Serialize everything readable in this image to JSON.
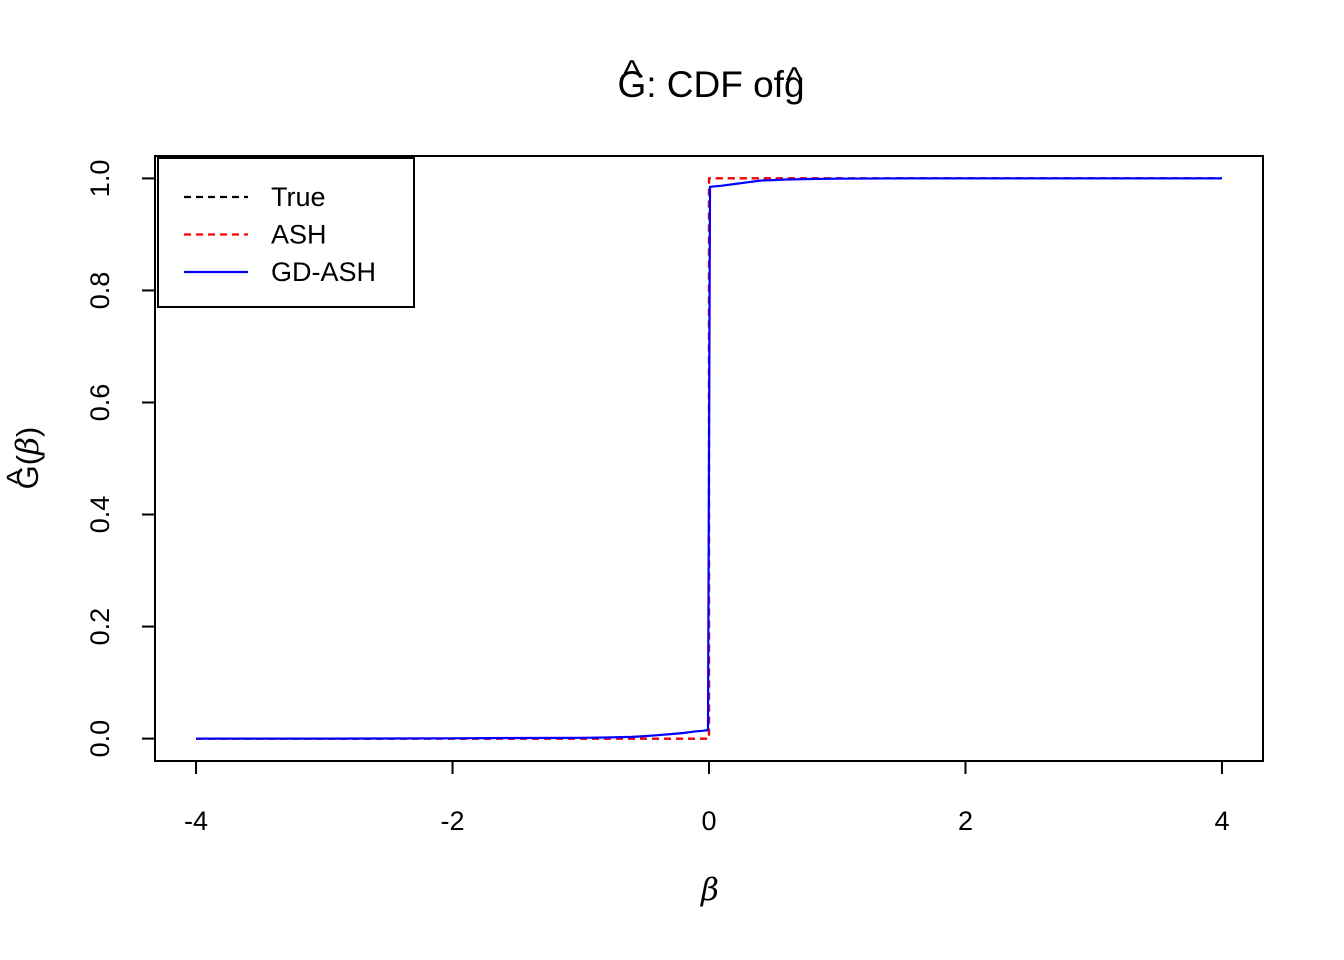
{
  "figure": {
    "background": "#ffffff",
    "axis_color": "#000000"
  },
  "chart_data": {
    "type": "line",
    "title": "Ĝ: CDF of ĝ",
    "xlabel": "β",
    "ylabel": "Ĝ(β)",
    "xlim": [
      -4,
      4
    ],
    "ylim": [
      0,
      1
    ],
    "axis_expand": 0.04,
    "grid": false,
    "xticks": [
      -4,
      -2,
      0,
      2,
      4
    ],
    "xtick_labels": [
      "-4",
      "-2",
      "0",
      "2",
      "4"
    ],
    "yticks": [
      0.0,
      0.2,
      0.4,
      0.6,
      0.8,
      1.0
    ],
    "ytick_labels": [
      "0.0",
      "0.2",
      "0.4",
      "0.6",
      "0.8",
      "1.0"
    ],
    "legend": {
      "position": "topleft",
      "items": [
        "True",
        "ASH",
        "GD-ASH"
      ]
    },
    "series": [
      {
        "name": "True",
        "color": "#000000",
        "line_style": "dashed",
        "x": [
          -4,
          0,
          0,
          4
        ],
        "y": [
          0,
          0,
          1,
          1
        ]
      },
      {
        "name": "ASH",
        "color": "#ff0000",
        "line_style": "dashed",
        "x": [
          -4,
          0,
          0,
          4
        ],
        "y": [
          0,
          0,
          1,
          1
        ]
      },
      {
        "name": "GD-ASH",
        "color": "#0000ff",
        "line_style": "solid",
        "x": [
          -4,
          -3,
          -2,
          -1.5,
          -1,
          -0.8,
          -0.6,
          -0.5,
          -0.4,
          -0.3,
          -0.2,
          -0.1,
          -0.05,
          -0.008,
          0.008,
          0.05,
          0.1,
          0.2,
          0.3,
          0.4,
          0.5,
          0.6,
          0.8,
          1,
          1.5,
          2,
          3,
          4
        ],
        "y": [
          0,
          0,
          0.0005,
          0.001,
          0.0015,
          0.002,
          0.003,
          0.0045,
          0.006,
          0.008,
          0.01,
          0.013,
          0.014,
          0.015,
          0.985,
          0.986,
          0.987,
          0.99,
          0.993,
          0.996,
          0.997,
          0.998,
          0.999,
          0.9995,
          1,
          1,
          1,
          1
        ]
      }
    ]
  }
}
